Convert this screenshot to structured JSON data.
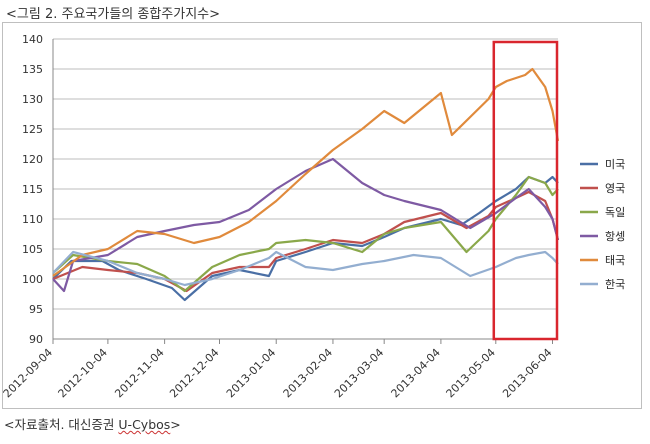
{
  "figure_title": "<그림 2. 주요국가들의 종합주가지수>",
  "source_prefix": "<자료출처. 대신증권 ",
  "source_name": "U-Cybos",
  "source_suffix": ">",
  "colors": {
    "highlight_box": "#d9262e",
    "gridline": "#bcbcbc",
    "axis": "#888888"
  },
  "chart_data": {
    "type": "line",
    "title": "",
    "xlabel": "",
    "ylabel": "",
    "ylim": [
      90,
      140
    ],
    "y_ticks": [
      90,
      95,
      100,
      105,
      110,
      115,
      120,
      125,
      130,
      135,
      140
    ],
    "x_tick_labels": [
      "2012-09-04",
      "2012-10-04",
      "2012-11-04",
      "2012-12-04",
      "2013-01-04",
      "2013-02-04",
      "2013-03-04",
      "2013-04-04",
      "2013-05-04",
      "2013-06-04"
    ],
    "grid": "horizontal",
    "legend_position": "right",
    "highlight_range": [
      "2013-05-04",
      "2013-06-07"
    ],
    "series": [
      {
        "name": "미국",
        "color": "#4a6fa5",
        "points": [
          [
            "2012-09-04",
            100
          ],
          [
            "2012-09-14",
            103
          ],
          [
            "2012-10-01",
            103
          ],
          [
            "2012-10-10",
            101.5
          ],
          [
            "2012-10-25",
            100
          ],
          [
            "2012-11-08",
            98.5
          ],
          [
            "2012-11-15",
            96.5
          ],
          [
            "2012-11-30",
            100.5
          ],
          [
            "2012-12-15",
            101.5
          ],
          [
            "2012-12-31",
            100.5
          ],
          [
            "2013-01-04",
            103
          ],
          [
            "2013-01-20",
            104.5
          ],
          [
            "2013-02-04",
            106
          ],
          [
            "2013-02-20",
            105.5
          ],
          [
            "2013-03-04",
            107
          ],
          [
            "2013-03-15",
            108.5
          ],
          [
            "2013-04-04",
            110
          ],
          [
            "2013-04-15",
            109
          ],
          [
            "2013-04-25",
            111
          ],
          [
            "2013-05-04",
            113
          ],
          [
            "2013-05-15",
            115
          ],
          [
            "2013-05-22",
            117
          ],
          [
            "2013-05-31",
            116
          ],
          [
            "2013-06-04",
            117
          ],
          [
            "2013-06-07",
            116
          ]
        ]
      },
      {
        "name": "영국",
        "color": "#c0504d",
        "points": [
          [
            "2012-09-04",
            100
          ],
          [
            "2012-09-20",
            102
          ],
          [
            "2012-10-04",
            101.5
          ],
          [
            "2012-10-20",
            101
          ],
          [
            "2012-11-04",
            100
          ],
          [
            "2012-11-16",
            98
          ],
          [
            "2012-11-30",
            101
          ],
          [
            "2012-12-15",
            102
          ],
          [
            "2012-12-31",
            102
          ],
          [
            "2013-01-04",
            103.5
          ],
          [
            "2013-01-20",
            105
          ],
          [
            "2013-02-04",
            106.5
          ],
          [
            "2013-02-20",
            106
          ],
          [
            "2013-03-04",
            107.5
          ],
          [
            "2013-03-15",
            109.5
          ],
          [
            "2013-04-04",
            111
          ],
          [
            "2013-04-18",
            108.5
          ],
          [
            "2013-04-30",
            110.5
          ],
          [
            "2013-05-04",
            112
          ],
          [
            "2013-05-15",
            113.5
          ],
          [
            "2013-05-22",
            114.5
          ],
          [
            "2013-05-31",
            113
          ],
          [
            "2013-06-04",
            110
          ],
          [
            "2013-06-07",
            106.5
          ]
        ]
      },
      {
        "name": "독일",
        "color": "#8aa84a",
        "points": [
          [
            "2012-09-04",
            101
          ],
          [
            "2012-09-15",
            104
          ],
          [
            "2012-10-04",
            103
          ],
          [
            "2012-10-20",
            102.5
          ],
          [
            "2012-11-04",
            100.5
          ],
          [
            "2012-11-15",
            98
          ],
          [
            "2012-11-30",
            102
          ],
          [
            "2012-12-15",
            104
          ],
          [
            "2012-12-31",
            105
          ],
          [
            "2013-01-04",
            106
          ],
          [
            "2013-01-20",
            106.5
          ],
          [
            "2013-02-04",
            106
          ],
          [
            "2013-02-20",
            104.5
          ],
          [
            "2013-03-04",
            107.5
          ],
          [
            "2013-03-15",
            108.5
          ],
          [
            "2013-04-04",
            109.5
          ],
          [
            "2013-04-18",
            104.5
          ],
          [
            "2013-04-30",
            108
          ],
          [
            "2013-05-04",
            110
          ],
          [
            "2013-05-15",
            114
          ],
          [
            "2013-05-22",
            117
          ],
          [
            "2013-05-31",
            116
          ],
          [
            "2013-06-04",
            114
          ],
          [
            "2013-06-07",
            115
          ]
        ]
      },
      {
        "name": "항셍",
        "color": "#7e5aa3",
        "points": [
          [
            "2012-09-04",
            100
          ],
          [
            "2012-09-10",
            98
          ],
          [
            "2012-09-15",
            103
          ],
          [
            "2012-10-04",
            104
          ],
          [
            "2012-10-20",
            107
          ],
          [
            "2012-11-04",
            108
          ],
          [
            "2012-11-20",
            109
          ],
          [
            "2012-12-04",
            109.5
          ],
          [
            "2012-12-20",
            111.5
          ],
          [
            "2013-01-04",
            115
          ],
          [
            "2013-01-20",
            118
          ],
          [
            "2013-02-04",
            120
          ],
          [
            "2013-02-20",
            116
          ],
          [
            "2013-03-04",
            114
          ],
          [
            "2013-03-15",
            113
          ],
          [
            "2013-04-04",
            111.5
          ],
          [
            "2013-04-20",
            108.5
          ],
          [
            "2013-05-04",
            111
          ],
          [
            "2013-05-15",
            113.5
          ],
          [
            "2013-05-22",
            115
          ],
          [
            "2013-05-31",
            112
          ],
          [
            "2013-06-04",
            110
          ],
          [
            "2013-06-07",
            106.5
          ]
        ]
      },
      {
        "name": "태국",
        "color": "#e08a3c",
        "points": [
          [
            "2012-09-04",
            100.5
          ],
          [
            "2012-09-20",
            104
          ],
          [
            "2012-10-04",
            105
          ],
          [
            "2012-10-20",
            108
          ],
          [
            "2012-11-04",
            107.5
          ],
          [
            "2012-11-20",
            106
          ],
          [
            "2012-12-04",
            107
          ],
          [
            "2012-12-20",
            109.5
          ],
          [
            "2013-01-04",
            113
          ],
          [
            "2013-01-20",
            117.5
          ],
          [
            "2013-02-04",
            121.5
          ],
          [
            "2013-02-20",
            125
          ],
          [
            "2013-03-04",
            128
          ],
          [
            "2013-03-15",
            126
          ],
          [
            "2013-04-04",
            131
          ],
          [
            "2013-04-10",
            124
          ],
          [
            "2013-04-20",
            127
          ],
          [
            "2013-04-30",
            130
          ],
          [
            "2013-05-04",
            132
          ],
          [
            "2013-05-10",
            133
          ],
          [
            "2013-05-20",
            134
          ],
          [
            "2013-05-24",
            135
          ],
          [
            "2013-05-31",
            132
          ],
          [
            "2013-06-04",
            128
          ],
          [
            "2013-06-07",
            123
          ]
        ]
      },
      {
        "name": "한국",
        "color": "#93aed0",
        "points": [
          [
            "2012-09-04",
            101
          ],
          [
            "2012-09-15",
            104.5
          ],
          [
            "2012-10-04",
            103
          ],
          [
            "2012-10-20",
            101
          ],
          [
            "2012-11-04",
            100
          ],
          [
            "2012-11-15",
            99
          ],
          [
            "2012-11-30",
            100
          ],
          [
            "2012-12-15",
            101.5
          ],
          [
            "2012-12-31",
            103.5
          ],
          [
            "2013-01-04",
            104.5
          ],
          [
            "2013-01-20",
            102
          ],
          [
            "2013-02-04",
            101.5
          ],
          [
            "2013-02-20",
            102.5
          ],
          [
            "2013-03-04",
            103
          ],
          [
            "2013-03-20",
            104
          ],
          [
            "2013-04-04",
            103.5
          ],
          [
            "2013-04-20",
            100.5
          ],
          [
            "2013-05-04",
            102
          ],
          [
            "2013-05-15",
            103.5
          ],
          [
            "2013-05-22",
            104
          ],
          [
            "2013-05-31",
            104.5
          ],
          [
            "2013-06-04",
            103.5
          ],
          [
            "2013-06-07",
            102.5
          ]
        ]
      }
    ]
  }
}
